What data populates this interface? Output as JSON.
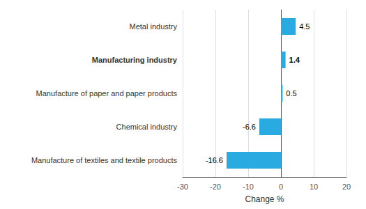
{
  "chart_data": {
    "type": "bar",
    "orientation": "horizontal",
    "categories": [
      "Manufacture of textiles and textile products",
      "Chemical industry",
      "Manufacture of paper and paper products",
      "Manufacturing industry",
      "Metal industry"
    ],
    "values": [
      -16.6,
      -6.6,
      0.5,
      1.4,
      4.5
    ],
    "color": "#29ABE2",
    "xlabel": "Change %",
    "xlim": [
      -30,
      20
    ],
    "xticks": [
      -30,
      -20,
      -10,
      0,
      10,
      20
    ],
    "grid": true,
    "data_labels": true
  }
}
